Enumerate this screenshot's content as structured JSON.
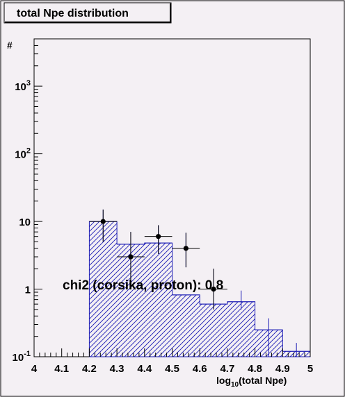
{
  "chart_data": {
    "type": "histogram",
    "title": "total Npe distribution",
    "xlabel_main": "log",
    "xlabel_sub": "10",
    "xlabel_rest": "(total Npe)",
    "ylabel": "#",
    "xlim": [
      4.0,
      5.0
    ],
    "ylim": [
      0.1,
      5000
    ],
    "yscale": "log",
    "x_ticks": [
      "4",
      "4.1",
      "4.2",
      "4.3",
      "4.4",
      "4.5",
      "4.6",
      "4.7",
      "4.8",
      "4.9",
      "5"
    ],
    "y_ticks": [
      {
        "value": 0.1,
        "base": "10",
        "exp": "-1"
      },
      {
        "value": 1,
        "base": "1",
        "exp": ""
      },
      {
        "value": 10,
        "base": "10",
        "exp": ""
      },
      {
        "value": 100,
        "base": "10",
        "exp": "2"
      },
      {
        "value": 1000,
        "base": "10",
        "exp": "3"
      }
    ],
    "mc_histogram": {
      "bin_edges": [
        4.2,
        4.3,
        4.4,
        4.5,
        4.6,
        4.7,
        4.8,
        4.9,
        5.0
      ],
      "values": [
        10,
        4.6,
        4.8,
        0.82,
        0.6,
        0.65,
        0.25,
        0.12
      ],
      "color": "#1a1ab4"
    },
    "data_points": {
      "x": [
        4.25,
        4.35,
        4.45,
        4.55,
        4.65,
        4.75,
        4.85,
        4.95
      ],
      "y": [
        10,
        3,
        6,
        4,
        1,
        null,
        null,
        null
      ],
      "y_err_low": [
        5,
        1.3,
        3.3,
        2.1,
        0.5,
        0.5,
        0.1,
        0.1
      ],
      "y_err_high": [
        15,
        7,
        8.8,
        6.8,
        2.0,
        0.95,
        0.37,
        0.16
      ],
      "x_err": 0.05,
      "color": "#000000",
      "error_color": "#1a1ab4"
    },
    "annotation": "chi2 (corsika, proton): 0.8"
  }
}
